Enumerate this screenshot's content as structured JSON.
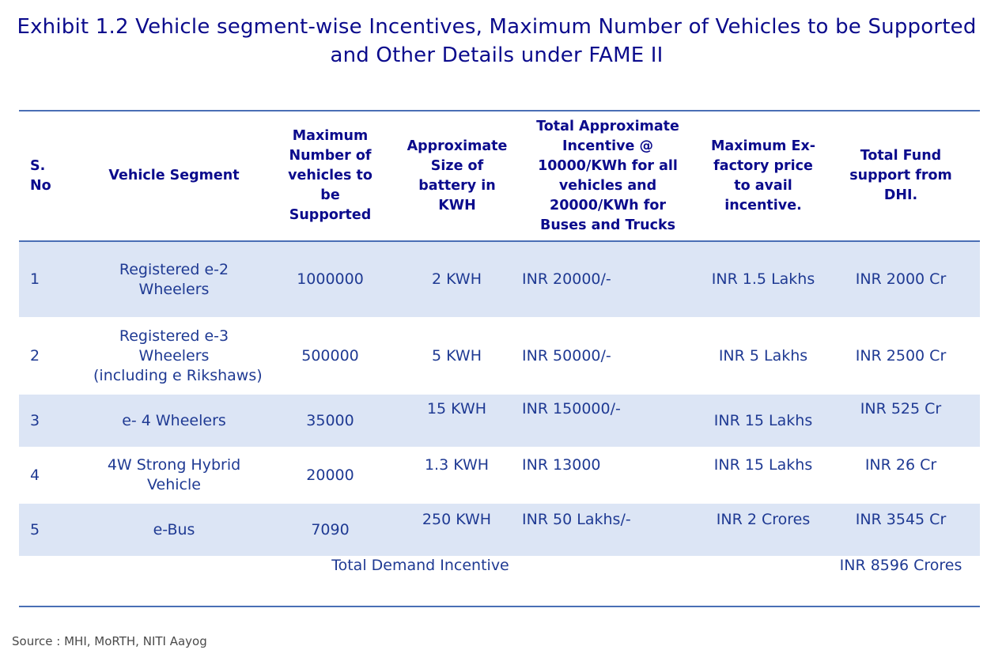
{
  "title": "Exhibit 1.2 Vehicle segment-wise Incentives, Maximum Number of Vehicles to be Supported and Other Details under FAME II",
  "headers": {
    "sno": "S. No",
    "segment": "Vehicle Segment",
    "max_vehicles": "Maximum Number of vehicles to be Supported",
    "battery": "Approximate Size of battery in KWH",
    "incentive": "Total Approximate Incentive @ 10000/KWh for all vehicles and 20000/KWh for Buses and Trucks",
    "max_price": "Maximum Ex-factory price to avail incentive.",
    "fund": "Total Fund support from DHI."
  },
  "rows": [
    {
      "sno": "1",
      "segment": "Registered e-2 Wheelers",
      "max_vehicles": "1000000",
      "battery": "2 KWH",
      "incentive": "INR 20000/-",
      "max_price": "INR 1.5 Lakhs",
      "fund": "INR 2000 Cr"
    },
    {
      "sno": "2",
      "segment": "Registered e-3 Wheelers",
      "segment_note": "(including e Rikshaws)",
      "max_vehicles": "500000",
      "battery": "5 KWH",
      "incentive": "INR 50000/-",
      "max_price": "INR 5 Lakhs",
      "fund": "INR 2500 Cr"
    },
    {
      "sno": "3",
      "segment": "e- 4 Wheelers",
      "max_vehicles": "35000",
      "battery": "15 KWH",
      "incentive": "INR 150000/-",
      "max_price": "INR 15 Lakhs",
      "fund": "INR 525 Cr"
    },
    {
      "sno": "4",
      "segment": "4W Strong Hybrid Vehicle",
      "max_vehicles": "20000",
      "battery": "1.3 KWH",
      "incentive": "INR 13000",
      "max_price": "INR 15 Lakhs",
      "fund": "INR 26 Cr"
    },
    {
      "sno": "5",
      "segment": "e-Bus",
      "max_vehicles": "7090",
      "battery": "250 KWH",
      "incentive": "INR 50 Lakhs/-",
      "max_price": "INR 2 Crores",
      "fund": "INR 3545 Cr"
    }
  ],
  "total": {
    "label": "Total Demand Incentive",
    "value": "INR 8596 Crores"
  },
  "source": "Source : MHI, MoRTH, NITI Aayog",
  "colors": {
    "title": "#0b0b8c",
    "text": "#1f3a93",
    "rule": "#4a6fb5",
    "shade": "#dce5f5"
  }
}
